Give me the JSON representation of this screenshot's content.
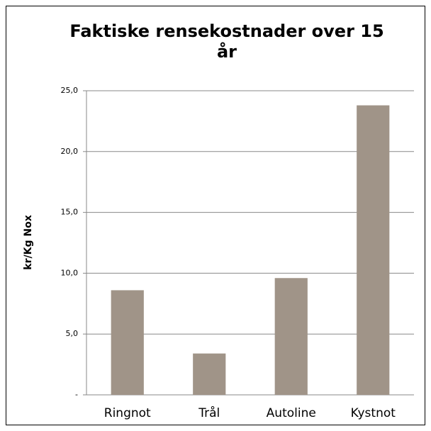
{
  "chart_data": {
    "type": "bar",
    "title": "Faktiske rensekostnader over 15 år",
    "ylabel": "kr/Kg Nox",
    "categories": [
      "Ringnot",
      "Trål",
      "Autoline",
      "Kystnot"
    ],
    "values": [
      8.6,
      3.4,
      9.6,
      23.8
    ],
    "color": "#a09488",
    "ylim": [
      0,
      25
    ],
    "yticks": [
      {
        "value": 0,
        "label": "-"
      },
      {
        "value": 5,
        "label": "5,0"
      },
      {
        "value": 10,
        "label": "10,0"
      },
      {
        "value": 15,
        "label": "15,0"
      },
      {
        "value": 20,
        "label": "20,0"
      },
      {
        "value": 25,
        "label": "25,0"
      }
    ],
    "grid": true
  }
}
